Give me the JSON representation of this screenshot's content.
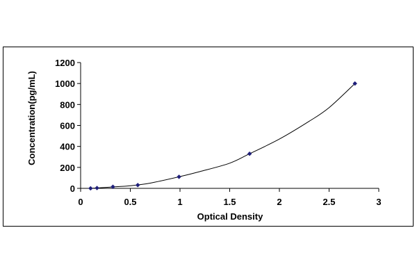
{
  "chart_data": {
    "type": "scatter",
    "title": "",
    "xlabel": "Optical Density",
    "ylabel": "Concentration(pg/mL)",
    "xlim": [
      0,
      3
    ],
    "ylim": [
      0,
      1200
    ],
    "x_ticks": [
      "0",
      "0.5",
      "1",
      "1.5",
      "2",
      "2.5",
      "3"
    ],
    "y_ticks": [
      "0",
      "200",
      "400",
      "600",
      "800",
      "1000",
      "1200"
    ],
    "grid": false,
    "legend": "none",
    "series": [
      {
        "x": [
          0.1,
          0.165,
          0.325,
          0.575,
          0.99,
          1.7,
          2.76
        ],
        "y": [
          0,
          3,
          15,
          31,
          110,
          330,
          1000
        ]
      }
    ],
    "trendline": {
      "x": [
        0.1,
        0.3,
        0.5,
        0.7,
        0.99,
        1.2,
        1.5,
        1.7,
        2.0,
        2.3,
        2.5,
        2.76
      ],
      "y": [
        0,
        12,
        25,
        50,
        110,
        160,
        240,
        330,
        470,
        640,
        770,
        1000
      ]
    },
    "colors": {
      "marker": "#1f1f7a",
      "line": "#000000"
    }
  }
}
